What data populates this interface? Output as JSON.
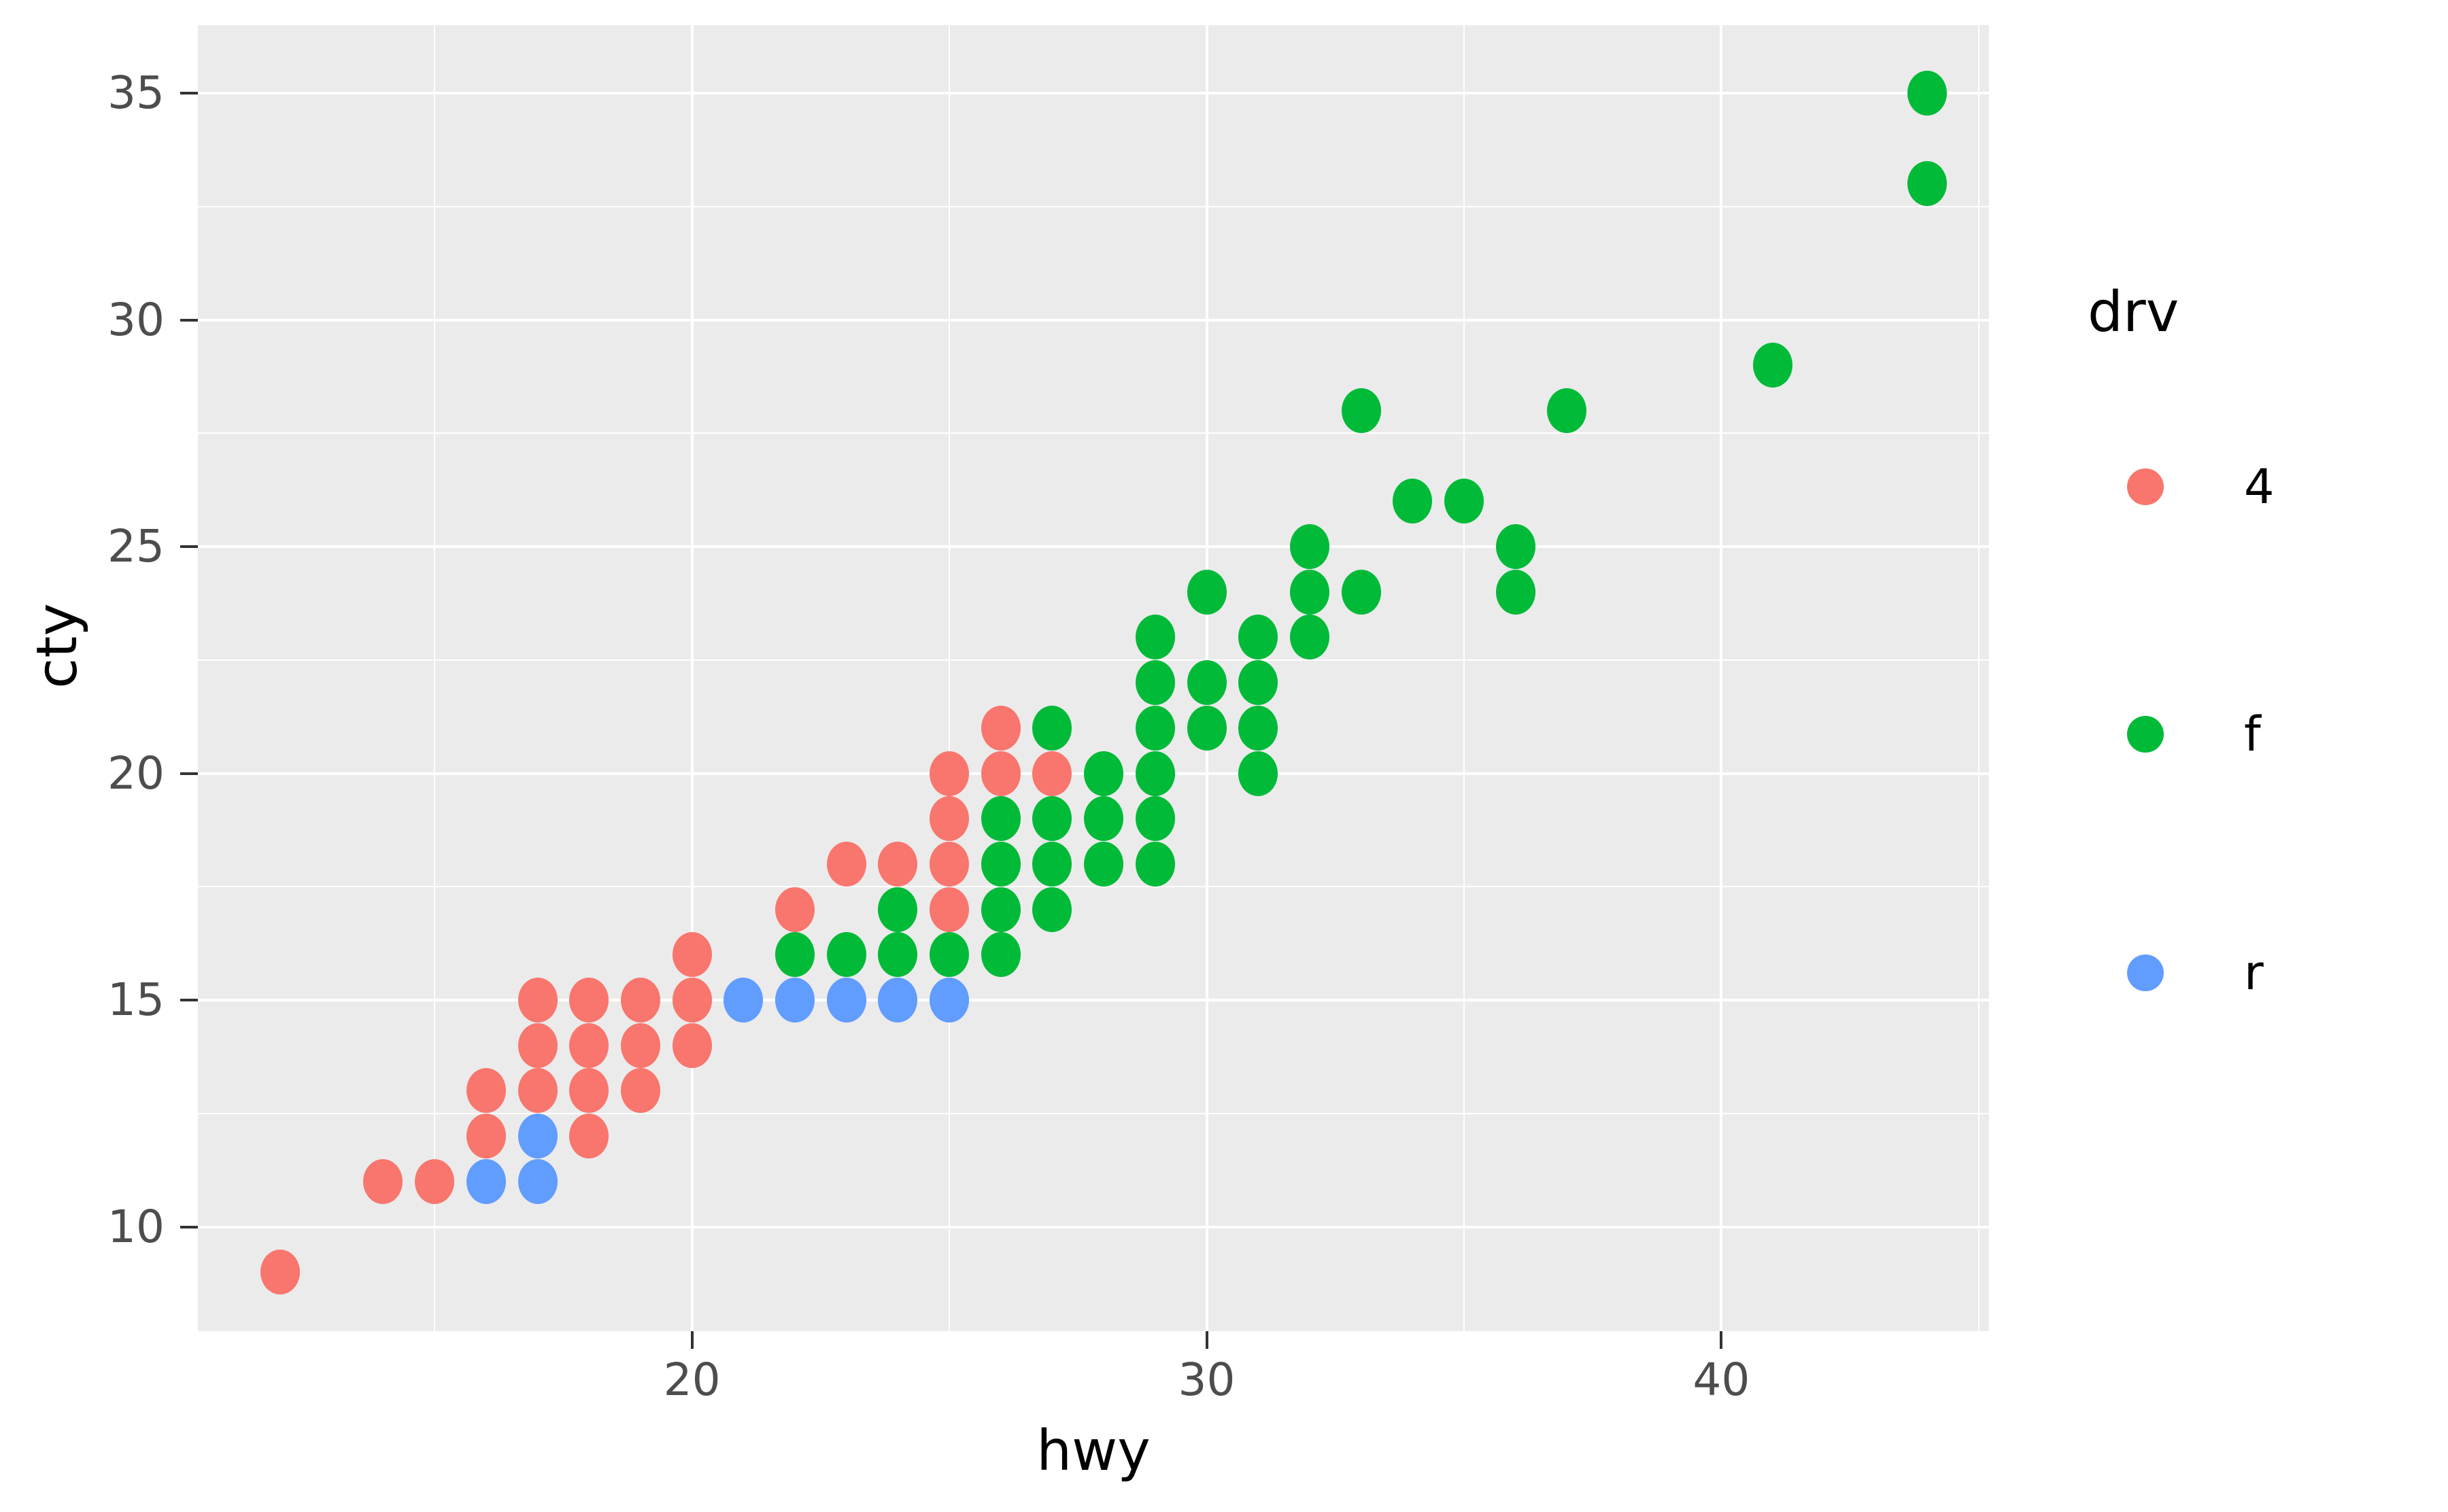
{
  "chart_data": {
    "type": "scatter",
    "title": "",
    "xlabel": "hwy",
    "ylabel": "cty",
    "xlim": [
      10.4,
      45.2
    ],
    "ylim": [
      7.7,
      36.5
    ],
    "x_tick_values": [
      20,
      30,
      40
    ],
    "y_tick_values": [
      10,
      15,
      20,
      25,
      30,
      35
    ],
    "x_minor_values": [
      15,
      25,
      35,
      45
    ],
    "y_minor_values": [
      12.5,
      17.5,
      22.5,
      27.5,
      32.5
    ],
    "grid": true,
    "panel_background": "#EBEBEB",
    "gridline_color": "#FFFFFF",
    "legend": {
      "title": "drv",
      "position": "right",
      "entries": [
        {
          "label": "4",
          "color": "#F8766D"
        },
        {
          "label": "f",
          "color": "#00BA38"
        },
        {
          "label": "r",
          "color": "#619CFF"
        }
      ]
    },
    "series": [
      {
        "name": "4",
        "color": "#F8766D",
        "points": [
          [
            12,
            9
          ],
          [
            14,
            11
          ],
          [
            15,
            11
          ],
          [
            16,
            12
          ],
          [
            18,
            12
          ],
          [
            16,
            13
          ],
          [
            17,
            13
          ],
          [
            18,
            13
          ],
          [
            19,
            13
          ],
          [
            17,
            14
          ],
          [
            18,
            14
          ],
          [
            19,
            14
          ],
          [
            20,
            14
          ],
          [
            17,
            15
          ],
          [
            18,
            15
          ],
          [
            19,
            15
          ],
          [
            20,
            15
          ],
          [
            20,
            16
          ],
          [
            22,
            17
          ],
          [
            25,
            17
          ],
          [
            23,
            18
          ],
          [
            24,
            18
          ],
          [
            25,
            18
          ],
          [
            25,
            19
          ],
          [
            25,
            20
          ],
          [
            26,
            20
          ],
          [
            27,
            20
          ],
          [
            26,
            21
          ]
        ]
      },
      {
        "name": "f",
        "color": "#00BA38",
        "points": [
          [
            22,
            16
          ],
          [
            23,
            16
          ],
          [
            24,
            16
          ],
          [
            25,
            16
          ],
          [
            26,
            16
          ],
          [
            24,
            17
          ],
          [
            26,
            17
          ],
          [
            27,
            17
          ],
          [
            26,
            18
          ],
          [
            27,
            18
          ],
          [
            28,
            18
          ],
          [
            29,
            18
          ],
          [
            26,
            19
          ],
          [
            27,
            19
          ],
          [
            28,
            19
          ],
          [
            29,
            19
          ],
          [
            28,
            20
          ],
          [
            29,
            20
          ],
          [
            31,
            20
          ],
          [
            27,
            21
          ],
          [
            29,
            21
          ],
          [
            30,
            21
          ],
          [
            31,
            21
          ],
          [
            29,
            22
          ],
          [
            30,
            22
          ],
          [
            31,
            22
          ],
          [
            29,
            23
          ],
          [
            31,
            23
          ],
          [
            32,
            23
          ],
          [
            30,
            24
          ],
          [
            32,
            24
          ],
          [
            33,
            24
          ],
          [
            36,
            24
          ],
          [
            32,
            25
          ],
          [
            36,
            25
          ],
          [
            34,
            26
          ],
          [
            35,
            26
          ],
          [
            33,
            28
          ],
          [
            37,
            28
          ],
          [
            41,
            29
          ],
          [
            44,
            33
          ],
          [
            44,
            35
          ]
        ]
      },
      {
        "name": "r",
        "color": "#619CFF",
        "points": [
          [
            16,
            11
          ],
          [
            17,
            11
          ],
          [
            17,
            12
          ],
          [
            21,
            15
          ],
          [
            22,
            15
          ],
          [
            23,
            15
          ],
          [
            24,
            15
          ],
          [
            25,
            15
          ]
        ]
      }
    ]
  }
}
